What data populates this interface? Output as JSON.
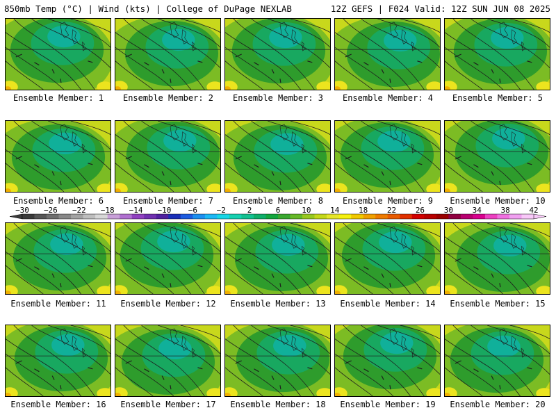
{
  "header": {
    "left": "850mb Temp (°C) | Wind (kts) | College of DuPage NEXLAB",
    "right": "12Z GEFS | F024 Valid: 12Z SUN JUN 08 2025"
  },
  "caption_prefix": "Ensemble Member: ",
  "members": [
    {
      "label": "Ensemble Member: 1"
    },
    {
      "label": "Ensemble Member: 2"
    },
    {
      "label": "Ensemble Member: 3"
    },
    {
      "label": "Ensemble Member: 4"
    },
    {
      "label": "Ensemble Member: 5"
    },
    {
      "label": "Ensemble Member: 6"
    },
    {
      "label": "Ensemble Member: 7"
    },
    {
      "label": "Ensemble Member: 8"
    },
    {
      "label": "Ensemble Member: 9"
    },
    {
      "label": "Ensemble Member: 10"
    },
    {
      "label": "Ensemble Member: 11"
    },
    {
      "label": "Ensemble Member: 12"
    },
    {
      "label": "Ensemble Member: 13"
    },
    {
      "label": "Ensemble Member: 14"
    },
    {
      "label": "Ensemble Member: 15"
    },
    {
      "label": "Ensemble Member: 16"
    },
    {
      "label": "Ensemble Member: 17"
    },
    {
      "label": "Ensemble Member: 18"
    },
    {
      "label": "Ensemble Member: 19"
    },
    {
      "label": "Ensemble Member: 20"
    }
  ],
  "colorbar": {
    "labels": [
      "-30",
      "-26",
      "-22",
      "-18",
      "-14",
      "-10",
      "-6",
      "-2",
      "2",
      "6",
      "10",
      "14",
      "18",
      "22",
      "26",
      "30",
      "34",
      "38",
      "42"
    ],
    "colors": [
      "#3a3a3a",
      "#555555",
      "#6e6e6e",
      "#888888",
      "#a3a3a3",
      "#bebebe",
      "#d7d7d7",
      "#c8a0d8",
      "#b070d0",
      "#9040c0",
      "#7030b0",
      "#5020a0",
      "#1a2fb8",
      "#1e5ce0",
      "#1c8ff0",
      "#1cb8f5",
      "#17d6e6",
      "#16d0b0",
      "#12c090",
      "#0fae6a",
      "#13a63e",
      "#3aa830",
      "#66b828",
      "#98c820",
      "#c4d81a",
      "#e6e62a",
      "#f5f010",
      "#f0c800",
      "#f0a000",
      "#ee7a00",
      "#e85a00",
      "#e03000",
      "#d20000",
      "#b80000",
      "#9a0000",
      "#900040",
      "#b80070",
      "#d8008e",
      "#ec40c0",
      "#f070e0",
      "#f0a0f0",
      "#f8c8f8"
    ]
  },
  "map_colors": {
    "core": "#10b09a",
    "inner": "#18a860",
    "mid": "#2e9c2c",
    "outer": "#7cbc24",
    "warm": "#c8d81c",
    "hot": "#ece41e",
    "hottest": "#f0b000",
    "contour": "#1e1e1e"
  }
}
